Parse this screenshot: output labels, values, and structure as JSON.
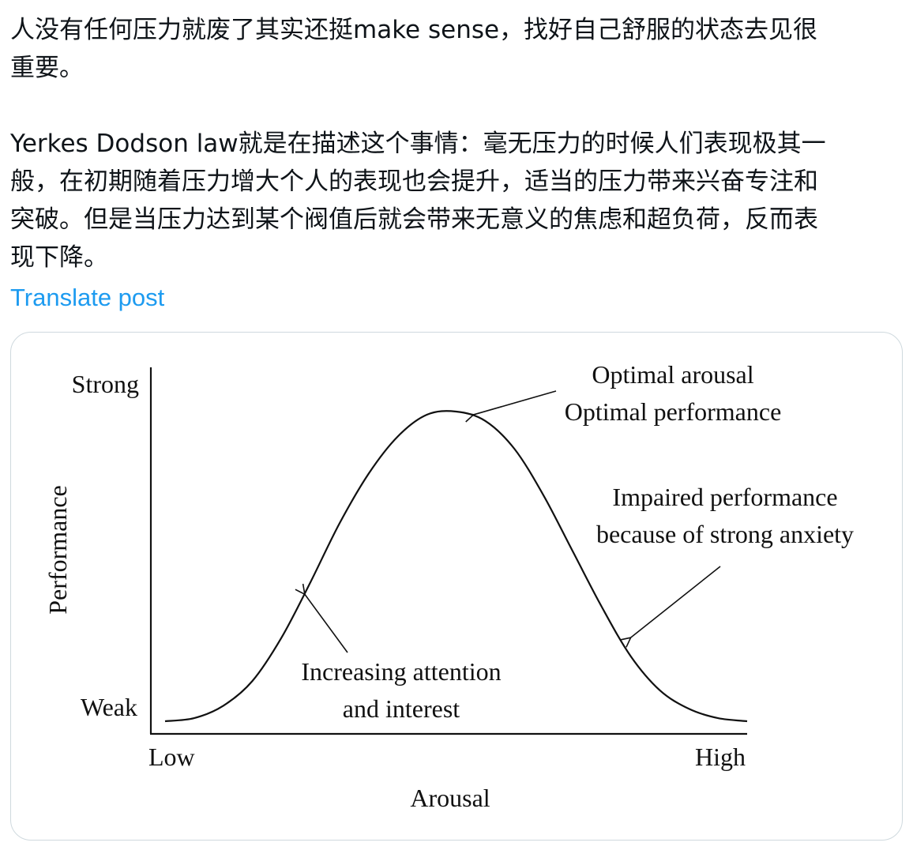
{
  "post": {
    "line1": "人没有任何压力就废了其实还挺make sense，找好自己舒服的状态去见很",
    "line2": "重要。",
    "line3": "Yerkes Dodson law就是在描述这个事情：毫无压力的时候人们表现极其一",
    "line4": "般，在初期随着压力增大个人的表现也会提升，适当的压力带来兴奋专注和",
    "line5": "突破。但是当压力达到某个阀值后就会带来无意义的焦虑和超负荷，反而表",
    "line6": "现下降。",
    "translate_label": "Translate post"
  },
  "chart_data": {
    "type": "line",
    "xlabel": "Arousal",
    "ylabel": "Performance",
    "x_ticks": [
      "Low",
      "High"
    ],
    "y_ticks": [
      "Strong",
      "Weak"
    ],
    "xlim": [
      0,
      1
    ],
    "ylim": [
      0,
      1
    ],
    "grid": false,
    "series": [
      {
        "values": [
          [
            0.0,
            0.0
          ],
          [
            0.05,
            0.01
          ],
          [
            0.1,
            0.05
          ],
          [
            0.15,
            0.13
          ],
          [
            0.2,
            0.27
          ],
          [
            0.25,
            0.45
          ],
          [
            0.3,
            0.64
          ],
          [
            0.35,
            0.8
          ],
          [
            0.4,
            0.92
          ],
          [
            0.45,
            0.99
          ],
          [
            0.5,
            1.0
          ],
          [
            0.55,
            0.97
          ],
          [
            0.6,
            0.88
          ],
          [
            0.65,
            0.73
          ],
          [
            0.7,
            0.55
          ],
          [
            0.75,
            0.37
          ],
          [
            0.8,
            0.21
          ],
          [
            0.85,
            0.1
          ],
          [
            0.9,
            0.04
          ],
          [
            0.95,
            0.01
          ],
          [
            1.0,
            0.0
          ]
        ]
      }
    ],
    "annotations": [
      {
        "id": "optimal",
        "lines": [
          "Optimal arousal",
          "Optimal performance"
        ],
        "target": [
          0.53,
          0.99
        ],
        "anchor": "top-right"
      },
      {
        "id": "impaired",
        "lines": [
          "Impaired performance",
          "because of strong anxiety"
        ],
        "target": [
          0.8,
          0.27
        ],
        "anchor": "right"
      },
      {
        "id": "increasing",
        "lines": [
          "Increasing attention",
          "and interest"
        ],
        "target": [
          0.24,
          0.41
        ],
        "anchor": "bottom-center"
      }
    ]
  }
}
